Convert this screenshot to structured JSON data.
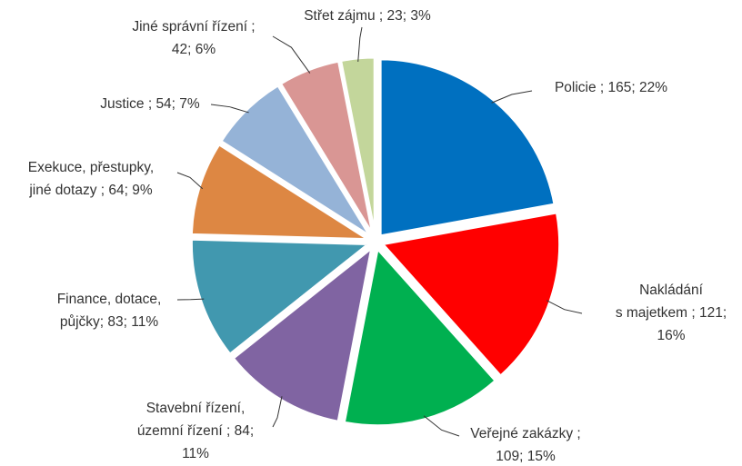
{
  "chart_data": {
    "type": "pie",
    "categories": [
      "Policie ; 165; 22%",
      "Nakládání\ns majetkem ; 121;\n16%",
      "Veřejné zakázky ;\n109; 15%",
      "Stavební řízení,\núzemní řízení ; 84;\n11%",
      "Finance, dotace,\npůjčky; 83; 11%",
      "Exekuce, přestupky,\njiné dotazy ; 64; 9%",
      "Justice ; 54; 7%",
      "Jiné správní řízení ;\n42; 6%",
      "Střet zájmu ; 23; 3%"
    ],
    "values": [
      165,
      121,
      109,
      84,
      83,
      64,
      54,
      42,
      23
    ],
    "colors": [
      "#0070c0",
      "#ff0000",
      "#00b050",
      "#8064a2",
      "#4198af",
      "#dd8743",
      "#95b3d7",
      "#d99694",
      "#c3d69b"
    ]
  }
}
